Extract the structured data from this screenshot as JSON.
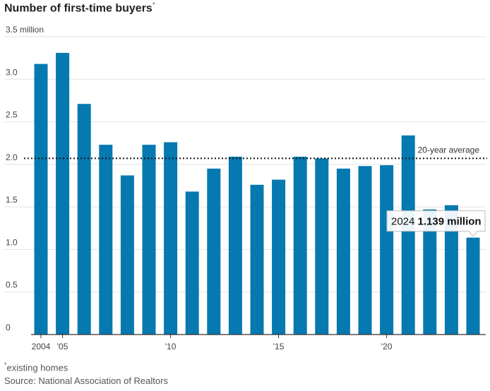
{
  "title": "Number of first-time buyers",
  "title_marker": "*",
  "footnote_marker": "*",
  "footnote": "existing homes",
  "source": "Source: National Association of Realtors",
  "colors": {
    "bar": "#0579b0",
    "grid": "#e2e2e2",
    "axis": "#333333"
  },
  "chart_data": {
    "type": "bar",
    "title": "Number of first-time buyers",
    "xlabel": "",
    "ylabel": "",
    "categories": [
      "2004",
      "2005",
      "2006",
      "2007",
      "2008",
      "2009",
      "2010",
      "2011",
      "2012",
      "2013",
      "2014",
      "2015",
      "2016",
      "2017",
      "2018",
      "2019",
      "2020",
      "2021",
      "2022",
      "2023",
      "2024"
    ],
    "values": [
      3.18,
      3.31,
      2.71,
      2.23,
      1.87,
      2.23,
      2.26,
      1.68,
      1.95,
      2.09,
      1.76,
      1.82,
      2.09,
      2.07,
      1.95,
      1.98,
      1.99,
      2.34,
      1.47,
      1.52,
      1.139
    ],
    "ylim": [
      0,
      3.5
    ],
    "yticks": [
      {
        "value": 0,
        "label": "0"
      },
      {
        "value": 0.5,
        "label": "0.5"
      },
      {
        "value": 1.0,
        "label": "1.0"
      },
      {
        "value": 1.5,
        "label": "1.5"
      },
      {
        "value": 2.0,
        "label": "2.0"
      },
      {
        "value": 2.5,
        "label": "2.5"
      },
      {
        "value": 3.0,
        "label": "3.0"
      },
      {
        "value": 3.5,
        "label": "3.5 million"
      }
    ],
    "xticks": [
      {
        "category": "2004",
        "label": "2004"
      },
      {
        "category": "2005",
        "label": "'05"
      },
      {
        "category": "2010",
        "label": "'10"
      },
      {
        "category": "2015",
        "label": "'15"
      },
      {
        "category": "2020",
        "label": "'20"
      }
    ],
    "reference_line": {
      "value": 2.07,
      "label": "20-year average"
    },
    "callout": {
      "category": "2024",
      "year": "2024",
      "value_text": "1.139 million"
    },
    "grid": true,
    "legend": "none"
  }
}
